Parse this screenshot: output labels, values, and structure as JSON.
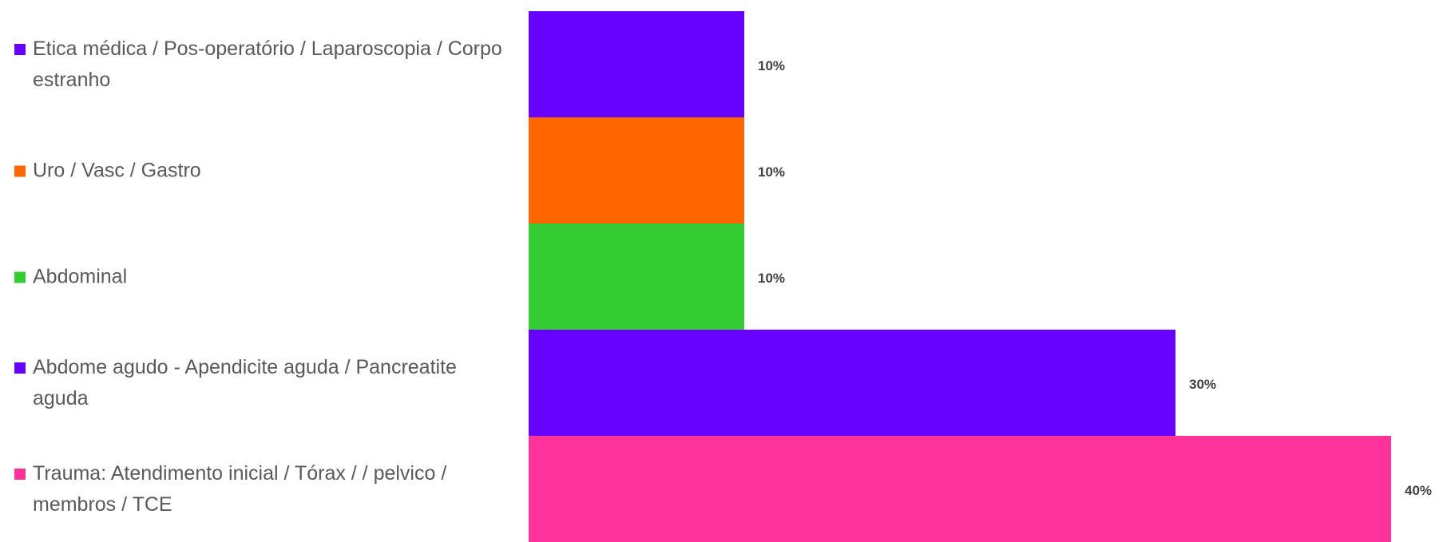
{
  "chart_data": {
    "type": "hbar",
    "categories": [
      "Etica médica / Pos-operatório / Laparoscopia / Corpo estranho",
      "Uro  / Vasc  / Gastro",
      "Abdominal",
      "Abdome agudo - Apendicite aguda / Pancreatite aguda",
      "Trauma: Atendimento inicial / Tórax /  / pelvico / membros / TCE"
    ],
    "values": [
      10,
      10,
      10,
      30,
      40
    ],
    "value_labels": [
      "10%",
      "10%",
      "10%",
      "30%",
      "40%"
    ],
    "colors": [
      "#6600ff",
      "#ff6600",
      "#33cc33",
      "#6600ff",
      "#ff3399"
    ],
    "xlim": [
      0,
      40
    ]
  }
}
